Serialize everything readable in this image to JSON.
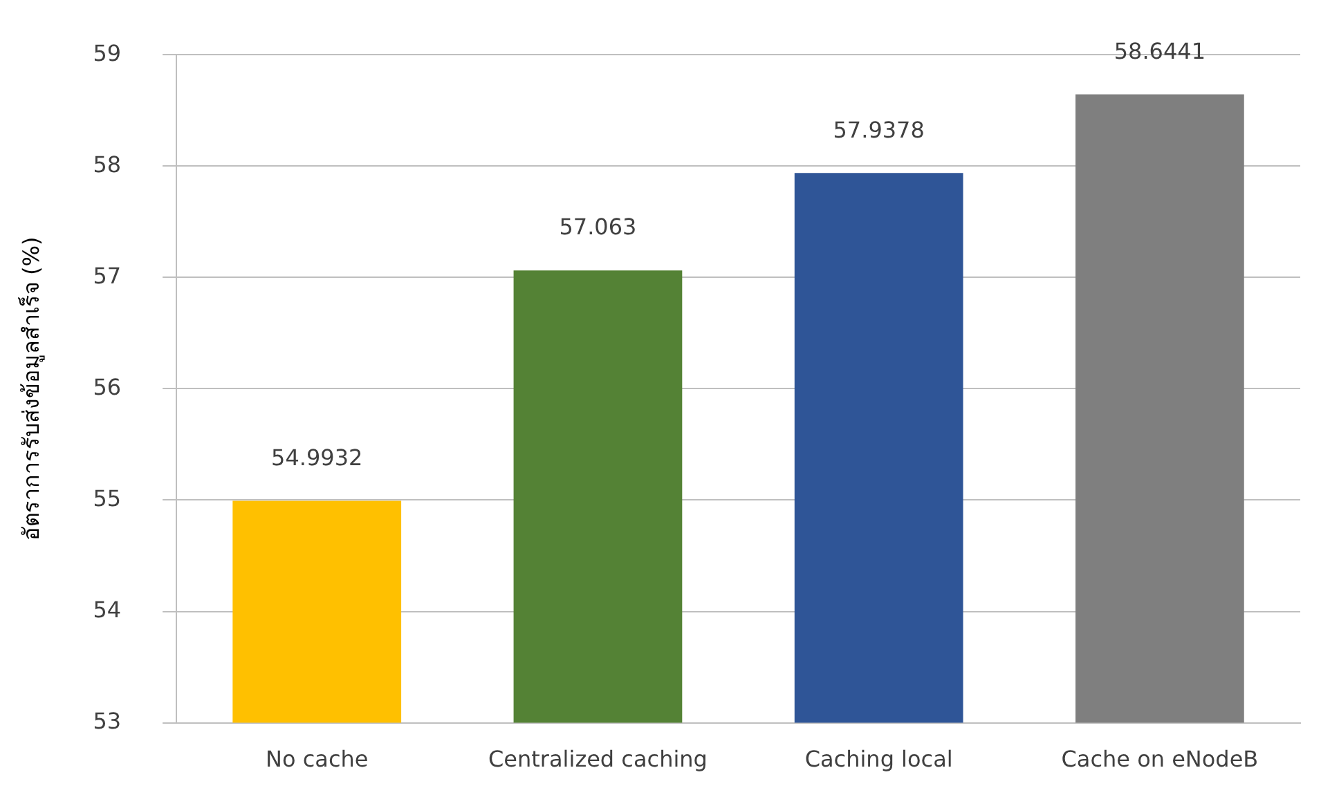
{
  "chart_data": {
    "type": "bar",
    "ylabel": "อัตราการรับส่งข้อมูลสำเร็จ (%)",
    "categories": [
      "No cache",
      "Centralized caching",
      "Caching local",
      "Cache on eNodeB"
    ],
    "values": [
      54.9932,
      57.063,
      57.9378,
      58.6441
    ],
    "colors": [
      "#ffc000",
      "#548235",
      "#2f5597",
      "#7f7f7f"
    ],
    "ylim": [
      53,
      59
    ],
    "yticks": [
      53,
      54,
      55,
      56,
      57,
      58,
      59
    ],
    "grid": "y",
    "data_labels": true,
    "legend": false
  }
}
